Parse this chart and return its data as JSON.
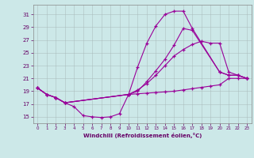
{
  "xlabel": "Windchill (Refroidissement éolien,°C)",
  "bg_color": "#cce8e8",
  "line_color": "#990099",
  "xlim": [
    -0.5,
    23.5
  ],
  "ylim": [
    14.0,
    32.5
  ],
  "xticks": [
    0,
    1,
    2,
    3,
    4,
    5,
    6,
    7,
    8,
    9,
    10,
    11,
    12,
    13,
    14,
    15,
    16,
    17,
    18,
    19,
    20,
    21,
    22,
    23
  ],
  "yticks": [
    15,
    17,
    19,
    21,
    23,
    25,
    27,
    29,
    31
  ],
  "line1_x": [
    0,
    1,
    2,
    3,
    4,
    5,
    6,
    7,
    8,
    9,
    10,
    11,
    12,
    13,
    14,
    15,
    16,
    17,
    18,
    19,
    20,
    21,
    22,
    23
  ],
  "line1_y": [
    19.5,
    18.5,
    18.0,
    17.2,
    16.6,
    15.2,
    15.0,
    14.9,
    15.0,
    15.5,
    18.5,
    18.6,
    18.7,
    18.8,
    18.9,
    19.0,
    19.2,
    19.4,
    19.6,
    19.8,
    20.0,
    21.0,
    21.0,
    21.0
  ],
  "line2_x": [
    0,
    1,
    2,
    3,
    10,
    11,
    12,
    13,
    14,
    15,
    16,
    17,
    18,
    19,
    20,
    21,
    22,
    23
  ],
  "line2_y": [
    19.5,
    18.5,
    18.0,
    17.2,
    18.5,
    19.2,
    20.2,
    21.5,
    23.0,
    24.5,
    25.5,
    26.3,
    26.8,
    26.5,
    26.5,
    22.0,
    21.5,
    21.0
  ],
  "line3_x": [
    0,
    1,
    2,
    3,
    10,
    11,
    12,
    13,
    14,
    15,
    16,
    17,
    20,
    21,
    22,
    23
  ],
  "line3_y": [
    19.5,
    18.5,
    18.0,
    17.2,
    18.5,
    22.8,
    26.5,
    29.2,
    31.0,
    31.5,
    31.5,
    28.8,
    22.0,
    21.5,
    21.5,
    21.0
  ],
  "line4_x": [
    0,
    1,
    2,
    3,
    10,
    11,
    12,
    13,
    14,
    15,
    16,
    17,
    20,
    21,
    22,
    23
  ],
  "line4_y": [
    19.5,
    18.5,
    18.0,
    17.2,
    18.5,
    19.0,
    20.5,
    22.2,
    24.0,
    26.2,
    28.8,
    28.5,
    22.0,
    21.5,
    21.5,
    21.0
  ]
}
